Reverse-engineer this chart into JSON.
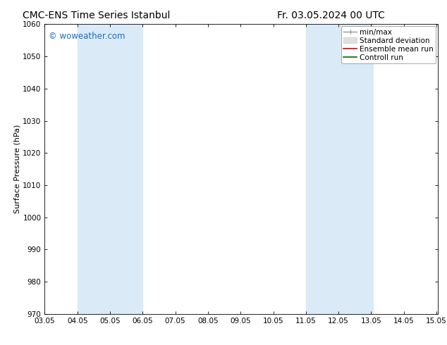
{
  "title_left": "CMC-ENS Time Series Istanbul",
  "title_right": "Fr. 03.05.2024 00 UTC",
  "ylabel": "Surface Pressure (hPa)",
  "ylim": [
    970,
    1060
  ],
  "yticks": [
    970,
    980,
    990,
    1000,
    1010,
    1020,
    1030,
    1040,
    1050,
    1060
  ],
  "xtick_labels": [
    "03.05",
    "04.05",
    "05.05",
    "06.05",
    "07.05",
    "08.05",
    "09.05",
    "10.05",
    "11.05",
    "12.05",
    "13.05",
    "14.05",
    "15.05"
  ],
  "xtick_positions": [
    3,
    4,
    5,
    6,
    7,
    8,
    9,
    10,
    11,
    12,
    13,
    14,
    15
  ],
  "xlim": [
    3.0,
    15.05
  ],
  "shaded_regions": [
    {
      "x_start": 4.0,
      "x_end": 6.0
    },
    {
      "x_start": 11.0,
      "x_end": 13.05
    }
  ],
  "shaded_color": "#daeaf7",
  "watermark": "© woweather.com",
  "watermark_color": "#1a6dcc",
  "legend_items": [
    {
      "label": "min/max",
      "color": "#999999",
      "style": "minmax"
    },
    {
      "label": "Standard deviation",
      "color": "#cccccc",
      "style": "stddev"
    },
    {
      "label": "Ensemble mean run",
      "color": "#dd0000",
      "style": "line"
    },
    {
      "label": "Controll run",
      "color": "#006600",
      "style": "line"
    }
  ],
  "background_color": "#ffffff",
  "spine_color": "#000000",
  "title_fontsize": 10,
  "axis_label_fontsize": 8,
  "tick_fontsize": 7.5,
  "legend_fontsize": 7.5
}
